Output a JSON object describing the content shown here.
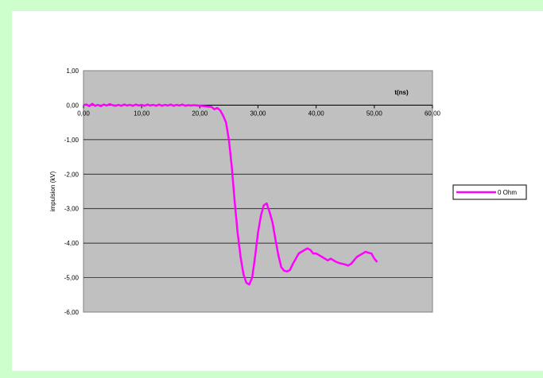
{
  "chart_data": {
    "type": "line",
    "xlabel": "t(ns)",
    "ylabel": "impulsion (kV)",
    "xlim": [
      0,
      60
    ],
    "ylim": [
      -6,
      1
    ],
    "x_ticks": [
      "0,00",
      "10,00",
      "20,00",
      "30,00",
      "40,00",
      "50,00",
      "60,00"
    ],
    "y_ticks": [
      "1,00",
      "0,00",
      "-1,00",
      "-2,00",
      "-3,00",
      "-4,00",
      "-5,00",
      "-6,00"
    ],
    "grid": "horizontal",
    "legend_position": "right",
    "colors": {
      "series": "#ff00ff",
      "plot_bg": "#c0c0c0",
      "frame": "#ccffcc"
    },
    "series": [
      {
        "name": "0 Ohm",
        "points": [
          [
            0,
            0.0
          ],
          [
            0.5,
            0.02
          ],
          [
            1,
            -0.03
          ],
          [
            1.5,
            0.04
          ],
          [
            2,
            -0.02
          ],
          [
            2.5,
            0.01
          ],
          [
            3,
            -0.03
          ],
          [
            3.5,
            0.02
          ],
          [
            4,
            -0.01
          ],
          [
            4.5,
            0.03
          ],
          [
            5,
            0.0
          ],
          [
            5.5,
            -0.02
          ],
          [
            6,
            0.01
          ],
          [
            6.5,
            -0.02
          ],
          [
            7,
            0.02
          ],
          [
            7.5,
            -0.01
          ],
          [
            8,
            0.01
          ],
          [
            8.5,
            -0.02
          ],
          [
            9,
            0.02
          ],
          [
            9.5,
            -0.01
          ],
          [
            10,
            0.01
          ],
          [
            10.5,
            -0.02
          ],
          [
            11,
            0.02
          ],
          [
            11.5,
            -0.01
          ],
          [
            12,
            0.01
          ],
          [
            12.5,
            -0.02
          ],
          [
            13,
            0.02
          ],
          [
            13.5,
            -0.02
          ],
          [
            14,
            0.01
          ],
          [
            14.5,
            -0.01
          ],
          [
            15,
            0.02
          ],
          [
            15.5,
            -0.02
          ],
          [
            16,
            0.01
          ],
          [
            16.5,
            -0.01
          ],
          [
            17,
            0.02
          ],
          [
            17.5,
            -0.02
          ],
          [
            18,
            0.0
          ],
          [
            18.5,
            -0.01
          ],
          [
            19,
            0.0
          ],
          [
            20,
            -0.02
          ],
          [
            21,
            -0.03
          ],
          [
            22,
            -0.05
          ],
          [
            22.5,
            -0.12
          ],
          [
            23,
            -0.08
          ],
          [
            23.5,
            -0.15
          ],
          [
            24,
            -0.3
          ],
          [
            24.5,
            -0.5
          ],
          [
            25,
            -1.0
          ],
          [
            25.5,
            -1.8
          ],
          [
            26,
            -2.8
          ],
          [
            26.5,
            -3.7
          ],
          [
            27,
            -4.4
          ],
          [
            27.5,
            -4.9
          ],
          [
            28,
            -5.15
          ],
          [
            28.5,
            -5.2
          ],
          [
            29,
            -5.0
          ],
          [
            29.5,
            -4.4
          ],
          [
            30,
            -3.7
          ],
          [
            30.5,
            -3.2
          ],
          [
            31,
            -2.9
          ],
          [
            31.5,
            -2.85
          ],
          [
            32,
            -3.1
          ],
          [
            32.5,
            -3.4
          ],
          [
            33,
            -3.9
          ],
          [
            33.5,
            -4.35
          ],
          [
            34,
            -4.7
          ],
          [
            34.5,
            -4.8
          ],
          [
            35,
            -4.82
          ],
          [
            35.5,
            -4.78
          ],
          [
            36,
            -4.6
          ],
          [
            36.5,
            -4.45
          ],
          [
            37,
            -4.3
          ],
          [
            37.5,
            -4.25
          ],
          [
            38,
            -4.2
          ],
          [
            38.5,
            -4.15
          ],
          [
            39,
            -4.2
          ],
          [
            39.5,
            -4.3
          ],
          [
            40,
            -4.3
          ],
          [
            40.5,
            -4.35
          ],
          [
            41,
            -4.4
          ],
          [
            41.5,
            -4.45
          ],
          [
            42,
            -4.5
          ],
          [
            42.5,
            -4.45
          ],
          [
            43,
            -4.5
          ],
          [
            43.5,
            -4.55
          ],
          [
            44,
            -4.58
          ],
          [
            44.5,
            -4.6
          ],
          [
            45,
            -4.62
          ],
          [
            45.5,
            -4.65
          ],
          [
            46,
            -4.6
          ],
          [
            46.5,
            -4.5
          ],
          [
            47,
            -4.4
          ],
          [
            47.5,
            -4.35
          ],
          [
            48,
            -4.3
          ],
          [
            48.5,
            -4.25
          ],
          [
            49,
            -4.28
          ],
          [
            49.5,
            -4.3
          ],
          [
            50,
            -4.45
          ],
          [
            50.5,
            -4.55
          ]
        ]
      }
    ]
  }
}
